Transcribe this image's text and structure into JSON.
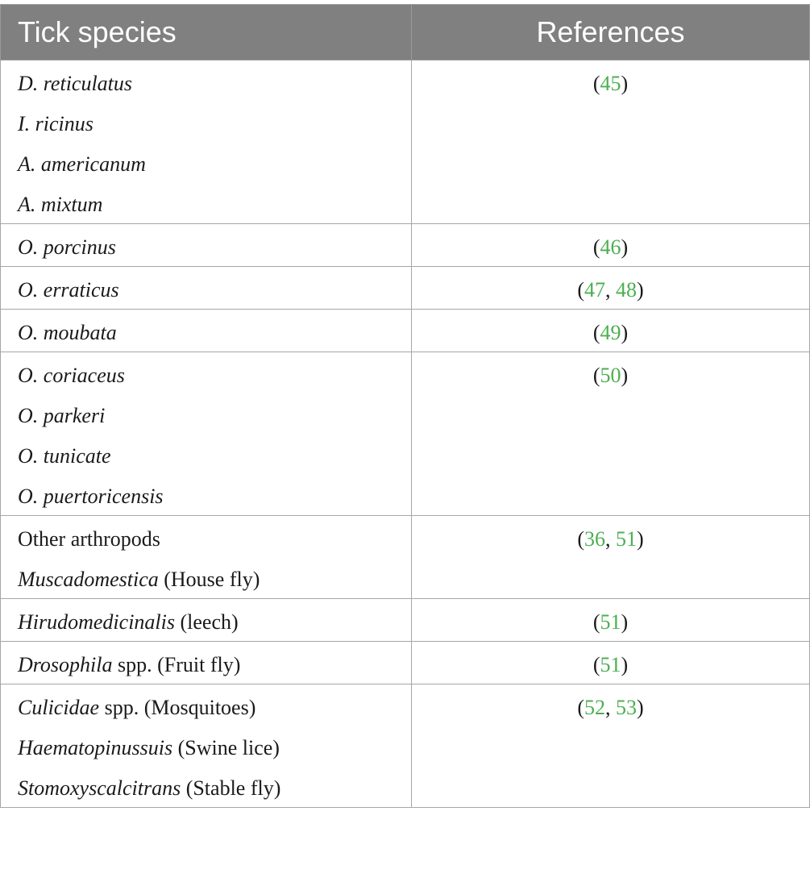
{
  "table": {
    "headers": {
      "species": "Tick species",
      "references": "References"
    },
    "rows": [
      {
        "species": [
          [
            {
              "text": "D. reticulatus",
              "italic": true
            }
          ],
          [
            {
              "text": "I. ricinus",
              "italic": true
            }
          ],
          [
            {
              "text": "A. americanum",
              "italic": true
            }
          ],
          [
            {
              "text": "A. mixtum",
              "italic": true
            }
          ]
        ],
        "refs": [
          "45"
        ]
      },
      {
        "species": [
          [
            {
              "text": "O. porcinus",
              "italic": true
            }
          ]
        ],
        "refs": [
          "46"
        ]
      },
      {
        "species": [
          [
            {
              "text": "O. erraticus",
              "italic": true
            }
          ]
        ],
        "refs": [
          "47",
          "48"
        ]
      },
      {
        "species": [
          [
            {
              "text": "O. moubata",
              "italic": true
            }
          ]
        ],
        "refs": [
          "49"
        ]
      },
      {
        "species": [
          [
            {
              "text": "O. coriaceus",
              "italic": true
            }
          ],
          [
            {
              "text": "O. parkeri",
              "italic": true
            }
          ],
          [
            {
              "text": "O. tunicate",
              "italic": true
            }
          ],
          [
            {
              "text": "O. puertoricensis",
              "italic": true
            }
          ]
        ],
        "refs": [
          "50"
        ]
      },
      {
        "species": [
          [
            {
              "text": "Other arthropods",
              "italic": false
            }
          ],
          [
            {
              "text": "Muscadomestica",
              "italic": true
            },
            {
              "text": " (House fly)",
              "italic": false
            }
          ]
        ],
        "refs": [
          "36",
          "51"
        ]
      },
      {
        "species": [
          [
            {
              "text": "Hirudomedicinalis",
              "italic": true
            },
            {
              "text": " (leech)",
              "italic": false
            }
          ]
        ],
        "refs": [
          "51"
        ]
      },
      {
        "species": [
          [
            {
              "text": "Drosophila",
              "italic": true
            },
            {
              "text": " spp. (Fruit fly)",
              "italic": false
            }
          ]
        ],
        "refs": [
          "51"
        ]
      },
      {
        "species": [
          [
            {
              "text": "Culicidae",
              "italic": true
            },
            {
              "text": " spp. (Mosquitoes)",
              "italic": false
            }
          ],
          [
            {
              "text": "Haematopinussuis",
              "italic": true
            },
            {
              "text": " (Swine lice)",
              "italic": false
            }
          ],
          [
            {
              "text": "Stomoxyscalcitrans",
              "italic": true
            },
            {
              "text": " (Stable fly)",
              "italic": false
            }
          ]
        ],
        "refs": [
          "52",
          "53"
        ]
      }
    ]
  },
  "colors": {
    "header_bg": "#808080",
    "header_text": "#ffffff",
    "link": "#4caf50",
    "border": "#a6a6a6"
  }
}
